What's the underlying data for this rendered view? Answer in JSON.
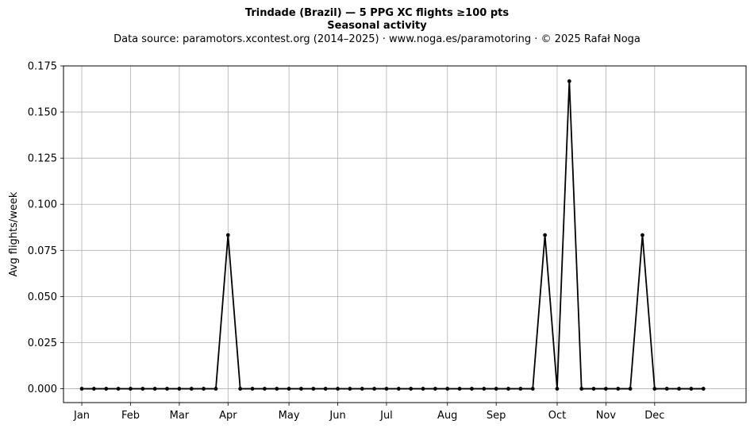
{
  "header": {
    "title": "Trindade (Brazil)  —  5 PPG XC flights ≥100 pts",
    "subtitle": "Seasonal activity",
    "source": "Data source: paramotors.xcontest.org (2014–2025)  ·  www.noga.es/paramotoring  ·  © 2025 Rafał Noga"
  },
  "chart_data": {
    "type": "line",
    "title": "Trindade (Brazil)  —  5 PPG XC flights ≥100 pts",
    "subtitle": "Seasonal activity",
    "xlabel": "",
    "ylabel": "Avg flights/week",
    "x_unit": "week of year",
    "xlim": [
      -1.5,
      54.5
    ],
    "ylim": [
      -0.0075,
      0.175
    ],
    "xticks": [
      {
        "label": "Jan",
        "week": 0
      },
      {
        "label": "Feb",
        "week": 4
      },
      {
        "label": "Mar",
        "week": 8
      },
      {
        "label": "Apr",
        "week": 12
      },
      {
        "label": "May",
        "week": 17
      },
      {
        "label": "Jun",
        "week": 21
      },
      {
        "label": "Jul",
        "week": 25
      },
      {
        "label": "Aug",
        "week": 30
      },
      {
        "label": "Sep",
        "week": 34
      },
      {
        "label": "Oct",
        "week": 39
      },
      {
        "label": "Nov",
        "week": 43
      },
      {
        "label": "Dec",
        "week": 47
      }
    ],
    "yticks": [
      0.0,
      0.025,
      0.05,
      0.075,
      0.1,
      0.125,
      0.15,
      0.175
    ],
    "ytick_labels": [
      "0.000",
      "0.025",
      "0.050",
      "0.075",
      "0.100",
      "0.125",
      "0.150",
      "0.175"
    ],
    "grid": true,
    "series": [
      {
        "color": "#000000",
        "marker": "circle",
        "x": [
          0,
          1,
          2,
          3,
          4,
          5,
          6,
          7,
          8,
          9,
          10,
          11,
          12,
          13,
          14,
          15,
          16,
          17,
          18,
          19,
          20,
          21,
          22,
          23,
          24,
          25,
          26,
          27,
          28,
          29,
          30,
          31,
          32,
          33,
          34,
          35,
          36,
          37,
          38,
          39,
          40,
          41,
          42,
          43,
          44,
          45,
          46,
          47,
          48,
          49,
          50,
          51
        ],
        "values": [
          0,
          0,
          0,
          0,
          0,
          0,
          0,
          0,
          0,
          0,
          0,
          0,
          0.0833,
          0,
          0,
          0,
          0,
          0,
          0,
          0,
          0,
          0,
          0,
          0,
          0,
          0,
          0,
          0,
          0,
          0,
          0,
          0,
          0,
          0,
          0,
          0,
          0,
          0,
          0.0833,
          0,
          0.1667,
          0,
          0,
          0,
          0,
          0,
          0.0833,
          0,
          0,
          0,
          0,
          0
        ]
      }
    ]
  }
}
